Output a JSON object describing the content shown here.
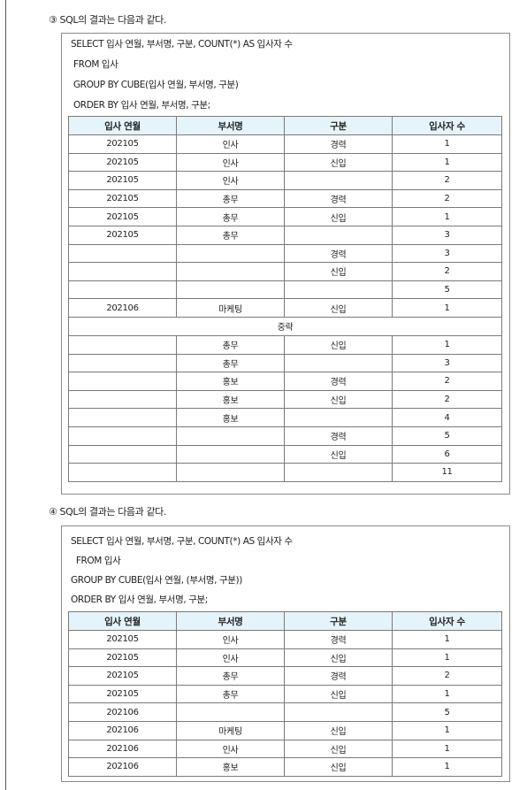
{
  "q3": {
    "title": "③ SQL의 결과는 다음과 같다.",
    "sql": [
      "SELECT 입사 연월, 부서명, 구분, COUNT(*) AS 입사자 수",
      " FROM 입사",
      " GROUP BY CUBE(입사 연월, 부서명, 구분)",
      " ORDER BY 입사 연월, 부서명, 구분;"
    ],
    "headers": [
      "입사 연월",
      "부서명",
      "구분",
      "입사자 수"
    ],
    "rows_top": [
      [
        "202105",
        "인사",
        "경력",
        "1"
      ],
      [
        "202105",
        "인사",
        "신입",
        "1"
      ],
      [
        "202105",
        "인사",
        "",
        "2"
      ],
      [
        "202105",
        "총무",
        "경력",
        "2"
      ],
      [
        "202105",
        "총무",
        "신입",
        "1"
      ],
      [
        "202105",
        "총무",
        "",
        "3"
      ],
      [
        "",
        "",
        "경력",
        "3"
      ],
      [
        "",
        "",
        "신입",
        "2"
      ],
      [
        "",
        "",
        "",
        "5"
      ],
      [
        "202106",
        "마케팅",
        "신입",
        "1"
      ]
    ],
    "omitted": "중략",
    "rows_bottom": [
      [
        "",
        "총무",
        "신입",
        "1"
      ],
      [
        "",
        "총무",
        "",
        "3"
      ],
      [
        "",
        "홍보",
        "경력",
        "2"
      ],
      [
        "",
        "홍보",
        "신입",
        "2"
      ],
      [
        "",
        "홍보",
        "",
        "4"
      ],
      [
        "",
        "",
        "경력",
        "5"
      ],
      [
        "",
        "",
        "신입",
        "6"
      ],
      [
        "",
        "",
        "",
        "11"
      ]
    ]
  },
  "q4": {
    "title": "④ SQL의 결과는 다음과 같다.",
    "sql": [
      "SELECT 입사 연월, 부서명, 구분, COUNT(*) AS 입사자 수",
      "  FROM 입사",
      "GROUP BY CUBE(입사 연월, (부서명, 구분))",
      "ORDER BY 입사 연월, 부서명, 구분;"
    ],
    "headers": [
      "입사 연월",
      "부서명",
      "구분",
      "입사자 수"
    ],
    "rows": [
      [
        "202105",
        "인사",
        "경력",
        "1"
      ],
      [
        "202105",
        "인사",
        "신입",
        "1"
      ],
      [
        "202105",
        "총무",
        "경력",
        "2"
      ],
      [
        "202105",
        "총무",
        "신입",
        "1"
      ],
      [
        "202106",
        "",
        "",
        "5"
      ],
      [
        "202106",
        "마케팅",
        "신입",
        "1"
      ],
      [
        "202106",
        "인사",
        "신입",
        "1"
      ],
      [
        "202106",
        "홍보",
        "신입",
        "1"
      ]
    ]
  }
}
